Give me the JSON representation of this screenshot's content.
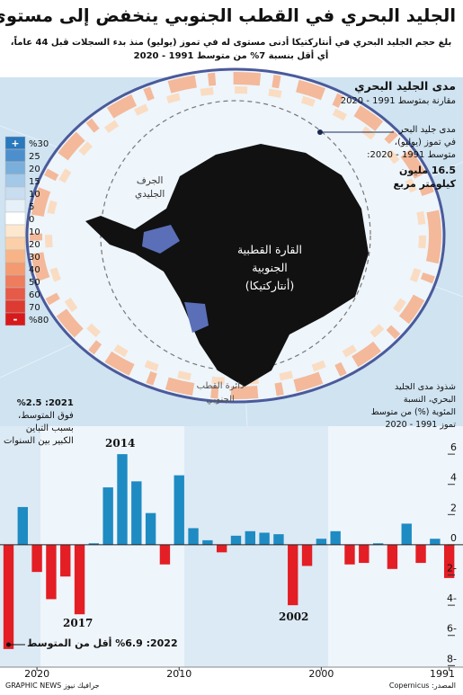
{
  "header": {
    "title": "الجليد البحري في القطب الجنوبي ينخفض إلى مستوى قياسي",
    "subtitle": [
      "بلغ حجم الجليد البحري في أنتاركتيكا أدنى مستوى له في تموز (يوليو) منذ بدء السجلات قبل 44 عاماً،",
      "أي أقل بنسبة 7% من متوسط 1991 - 2020"
    ]
  },
  "map": {
    "heading": "مدى الجليد البحري",
    "heading_sub": "مقارنة بمتوسط 1991 - 2020",
    "average_note": [
      "مدى جليد البحر",
      "في تموز (يوليو)،",
      "متوسط 1991 - 2020:"
    ],
    "average_value": [
      "16.5 مليون",
      "كيلومتر مربع"
    ],
    "ice_shelf": [
      "الجرف",
      "الجليدي"
    ],
    "continent": [
      "القارة القطبية",
      "الجنوبية",
      "(أنتاركتيكا)"
    ],
    "circle": [
      "دائرة القطب",
      "الجنوبي"
    ],
    "legend": {
      "labels": [
        "%30",
        "25",
        "20",
        "15",
        "10",
        "5",
        "0",
        "10",
        "20",
        "30",
        "40",
        "50",
        "60",
        "70",
        "%80"
      ],
      "colors": [
        "#2a78bd",
        "#4d8fcc",
        "#7aaedb",
        "#a4c8e8",
        "#c8ddf0",
        "#e6f0f8",
        "#ffffff",
        "#fde7cf",
        "#fbd0a8",
        "#f8b487",
        "#f39a70",
        "#ee7c5e",
        "#e65a48",
        "#dd3a32",
        "#d7191c"
      ],
      "plus": "+",
      "minus": "-"
    }
  },
  "chart_data": {
    "type": "bar",
    "description": [
      "شذوذ مدى الجليد",
      "البحري، النسبة",
      "المئوية (%) من متوسط",
      "تموز 1991 - 2020"
    ],
    "x": [
      2022,
      2021,
      2020,
      2019,
      2018,
      2017,
      2016,
      2015,
      2014,
      2013,
      2012,
      2011,
      2010,
      2009,
      2008,
      2007,
      2006,
      2005,
      2004,
      2003,
      2002,
      2001,
      2000,
      1999,
      1998,
      1997,
      1996,
      1995,
      1994,
      1993,
      1992,
      1991
    ],
    "values": [
      -6.9,
      2.5,
      -1.8,
      -3.6,
      -2.1,
      -4.6,
      0.1,
      3.8,
      6.0,
      4.2,
      2.1,
      -1.3,
      4.6,
      1.1,
      0.3,
      -0.5,
      0.6,
      0.9,
      0.8,
      0.7,
      -4.0,
      -1.4,
      0.4,
      0.9,
      -1.3,
      -1.2,
      0.1,
      -1.6,
      1.4,
      -1.2,
      0.4,
      -2.2
    ],
    "positive_color": "#1e8bc3",
    "negative_color": "#e31e24",
    "xlim": [
      2022.6,
      1990.6
    ],
    "xticks": [
      2020,
      2010,
      2000,
      1991
    ],
    "ylim": [
      -8.2,
      6.9
    ],
    "yticks": [
      6,
      4,
      2,
      0,
      {
        "value": -2,
        "label": "2-"
      },
      {
        "value": -4,
        "label": "4-"
      },
      {
        "value": -6,
        "label": "6-"
      },
      {
        "value": -8,
        "label": "8-"
      }
    ],
    "annotations": {
      "y2014": "2014",
      "y2017": "2017",
      "y2002": "2002",
      "note2021": [
        "2021: %2.5",
        "فوق المتوسط،",
        "بسبب التباين",
        "الكبير بين السنوات"
      ],
      "note2022": "2022: %6.9 أقل من المتوسط"
    }
  },
  "footer": {
    "credit": "GRAPHIC NEWS جرافيك نيوز",
    "source": "المصدر: Copernicus"
  }
}
